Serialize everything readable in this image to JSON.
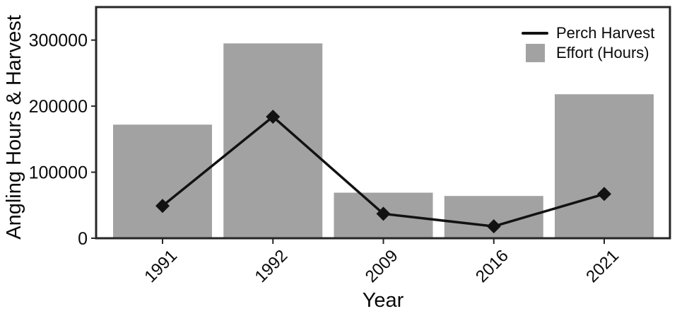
{
  "chart_data": {
    "type": "combo",
    "xlabel": "Year",
    "ylabel": "Angling Hours & Harvest",
    "categories": [
      "1991",
      "1992",
      "2009",
      "2016",
      "2021"
    ],
    "series": [
      {
        "name": "Perch Harvest",
        "type": "line",
        "marker": "diamond",
        "values": [
          49000,
          184000,
          37000,
          18000,
          67000
        ]
      },
      {
        "name": "Effort (Hours)",
        "type": "bar",
        "values": [
          172000,
          295000,
          69000,
          64000,
          218000
        ]
      }
    ],
    "y_ticks": [
      0,
      100000,
      200000,
      300000
    ],
    "y_tick_labels": [
      "0",
      "100000",
      "200000",
      "300000"
    ],
    "ylim": [
      0,
      350000
    ],
    "grid": false,
    "legend_position": "top-right"
  },
  "colors": {
    "bar": "#a2a2a2",
    "line": "#121212",
    "text": "#0a0a0a",
    "border": "#262626",
    "background": "#ffffff"
  }
}
